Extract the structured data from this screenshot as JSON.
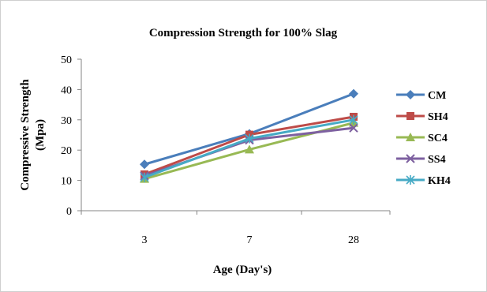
{
  "chart_data": {
    "type": "line",
    "title": "Compression Strength for 100% Slag",
    "xlabel": "Age (Day's)",
    "ylabel_lines": [
      "Compressive Strength",
      "(Mpa)"
    ],
    "categories": [
      "3",
      "7",
      "28"
    ],
    "yticks": [
      0,
      10,
      20,
      30,
      40,
      50
    ],
    "ylim": [
      0,
      50
    ],
    "grid": false,
    "legend_position": "right",
    "series": [
      {
        "name": "CM",
        "values": [
          15.3,
          25.4,
          38.6
        ],
        "color": "#4a7ebb",
        "marker": "diamond"
      },
      {
        "name": "SH4",
        "values": [
          12.0,
          25.1,
          31.0
        ],
        "color": "#be4b48",
        "marker": "square"
      },
      {
        "name": "SC4",
        "values": [
          10.5,
          20.2,
          29.0
        ],
        "color": "#98b954",
        "marker": "triangle"
      },
      {
        "name": "SS4",
        "values": [
          11.5,
          23.3,
          27.3
        ],
        "color": "#7d60a0",
        "marker": "x"
      },
      {
        "name": "KH4",
        "values": [
          11.0,
          23.8,
          30.0
        ],
        "color": "#46aac5",
        "marker": "star"
      }
    ]
  }
}
